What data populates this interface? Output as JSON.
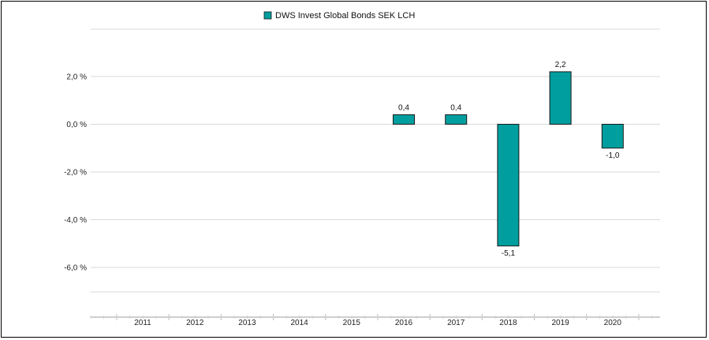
{
  "chart_data": {
    "type": "bar",
    "categories": [
      "2011",
      "2012",
      "2013",
      "2014",
      "2015",
      "2016",
      "2017",
      "2018",
      "2019",
      "2020"
    ],
    "series": [
      {
        "name": "DWS Invest Global Bonds  SEK LCH",
        "values": [
          null,
          null,
          null,
          null,
          null,
          0.4,
          0.4,
          -5.1,
          2.2,
          -1.0
        ],
        "labels": [
          "",
          "",
          "",
          "",
          "",
          "0,4",
          "0,4",
          "-5,1",
          "2,2",
          "-1,0"
        ]
      }
    ],
    "ylim": [
      -6.0,
      2.0
    ],
    "yticks": [
      2.0,
      0.0,
      -2.0,
      -4.0,
      -6.0
    ],
    "ytick_labels": [
      "2,0 %",
      "0,0 %",
      "-2,0 %",
      "-4,0 %",
      "-6,0 %"
    ],
    "xlabel": "",
    "ylabel": "",
    "grid": true,
    "legend_position": "top-center",
    "colors": {
      "bar": "#009E9E",
      "bar_edge": "#1a1a1a",
      "grid": "#d9d9d9"
    }
  }
}
